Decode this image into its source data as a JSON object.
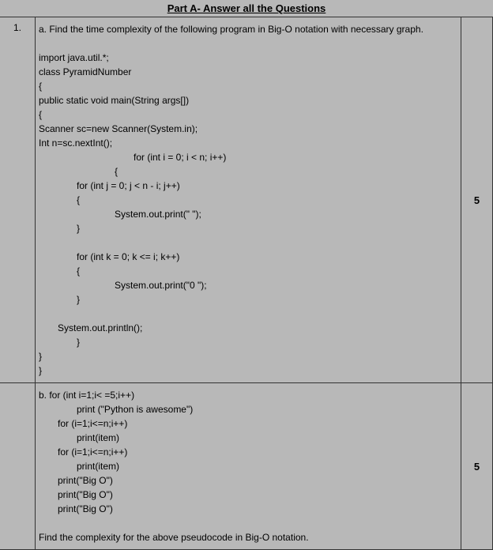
{
  "header": "Part A- Answer all the Questions",
  "rows": [
    {
      "num": "1.",
      "marks": "5",
      "lines": [
        {
          "text": "a. Find the time complexity of the following program in Big-O notation with necessary graph.",
          "indent": 0
        },
        {
          "text": "",
          "indent": 0
        },
        {
          "text": "import java.util.*;",
          "indent": 0
        },
        {
          "text": "class PyramidNumber",
          "indent": 0
        },
        {
          "text": "{",
          "indent": 0
        },
        {
          "text": "public static void main(String args[])",
          "indent": 0
        },
        {
          "text": "{",
          "indent": 0
        },
        {
          "text": "Scanner sc=new Scanner(System.in);",
          "indent": 0
        },
        {
          "text": "Int n=sc.nextInt();",
          "indent": 0
        },
        {
          "text": "for (int i = 0; i < n; i++)",
          "indent": 5
        },
        {
          "text": "{",
          "indent": 4
        },
        {
          "text": "for (int j = 0; j < n - i; j++)",
          "indent": 2
        },
        {
          "text": "{",
          "indent": 2
        },
        {
          "text": "System.out.print(\" \");",
          "indent": 4
        },
        {
          "text": "}",
          "indent": 2
        },
        {
          "text": "",
          "indent": 0
        },
        {
          "text": "for (int k = 0; k <= i; k++)",
          "indent": 2
        },
        {
          "text": "{",
          "indent": 2
        },
        {
          "text": "System.out.print(\"0 \");",
          "indent": 4
        },
        {
          "text": "}",
          "indent": 2
        },
        {
          "text": "",
          "indent": 0
        },
        {
          "text": "System.out.println();",
          "indent": 1
        },
        {
          "text": "}",
          "indent": 2
        },
        {
          "text": "}",
          "indent": 0
        },
        {
          "text": "}",
          "indent": 0
        }
      ]
    },
    {
      "num": "",
      "marks": "5",
      "lines": [
        {
          "text": "b. for (int i=1;i< =5;i++)",
          "indent": 0
        },
        {
          "text": "print (\"Python is awesome\")",
          "indent": 2
        },
        {
          "text": "for (i=1;i<=n;i++)",
          "indent": 1
        },
        {
          "text": "print(item)",
          "indent": 2
        },
        {
          "text": "for (i=1;i<=n;i++)",
          "indent": 1
        },
        {
          "text": "print(item)",
          "indent": 2
        },
        {
          "text": "print(\"Big O\")",
          "indent": 1
        },
        {
          "text": "print(\"Big O\")",
          "indent": 1
        },
        {
          "text": "print(\"Big O\")",
          "indent": 1
        },
        {
          "text": "",
          "indent": 0
        },
        {
          "text": "Find the complexity for the above pseudocode in Big-O notation.",
          "indent": 0
        }
      ]
    }
  ],
  "colors": {
    "background": "#b8b8b8",
    "border": "#333333",
    "text": "#000000"
  }
}
